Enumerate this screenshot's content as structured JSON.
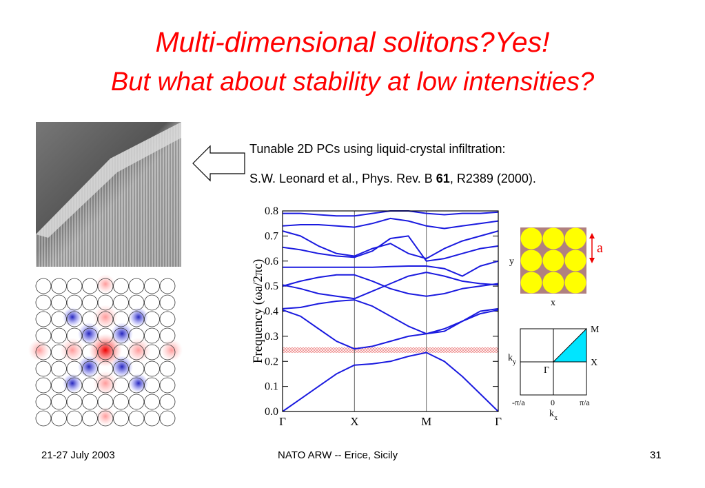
{
  "header": {
    "title": "Multi-dimensional solitons?Yes!",
    "subtitle": "But what about stability at low intensities?"
  },
  "reference": {
    "line1": "Tunable 2D PCs using liquid-crystal infiltration:",
    "line2_before": "S.W. Leonard et al., Phys. Rev. B ",
    "line2_bold": "61",
    "line2_after": ", R2389 (2000)."
  },
  "chart_data": {
    "type": "line",
    "y_label": "Frequency  (ωa/2πc)",
    "categories": [
      "Γ",
      null,
      null,
      null,
      "X",
      null,
      null,
      null,
      "M",
      null,
      null,
      null,
      "Γ"
    ],
    "ylim": [
      0,
      0.8
    ],
    "yticks": [
      {
        "value": 0,
        "label": "0.0"
      },
      0.1,
      0.2,
      0.3,
      0.4,
      0.5,
      0.6,
      0.7,
      0.8
    ],
    "color": "#1a1adf",
    "highlight": 0.245,
    "series": [
      {
        "values": [
          0,
          0.05,
          0.1,
          0.15,
          0.185,
          0.19,
          0.2,
          0.22,
          0.235,
          0.2,
          0.14,
          0.07,
          0
        ]
      },
      {
        "values": [
          0.405,
          0.38,
          0.33,
          0.28,
          0.25,
          0.26,
          0.28,
          0.3,
          0.31,
          0.33,
          0.36,
          0.39,
          0.405
        ]
      },
      {
        "values": [
          0.41,
          0.415,
          0.43,
          0.44,
          0.445,
          0.42,
          0.38,
          0.34,
          0.31,
          0.32,
          0.36,
          0.4,
          0.41
        ]
      },
      {
        "values": [
          0.5,
          0.52,
          0.535,
          0.545,
          0.545,
          0.52,
          0.49,
          0.47,
          0.46,
          0.47,
          0.49,
          0.5,
          0.51
        ]
      },
      {
        "values": [
          0.505,
          0.49,
          0.47,
          0.46,
          0.45,
          0.48,
          0.51,
          0.54,
          0.555,
          0.54,
          0.52,
          0.51,
          0.505
        ]
      },
      {
        "values": [
          0.575,
          0.575,
          0.575,
          0.575,
          0.575,
          0.575,
          0.578,
          0.58,
          0.58,
          0.57,
          0.54,
          0.58,
          0.6
        ]
      },
      {
        "values": [
          0.655,
          0.645,
          0.63,
          0.62,
          0.615,
          0.64,
          0.69,
          0.7,
          0.6,
          0.61,
          0.63,
          0.65,
          0.66
        ]
      },
      {
        "values": [
          0.72,
          0.7,
          0.66,
          0.63,
          0.62,
          0.65,
          0.67,
          0.63,
          0.61,
          0.65,
          0.68,
          0.7,
          0.72
        ]
      },
      {
        "values": [
          0.74,
          0.745,
          0.745,
          0.74,
          0.735,
          0.75,
          0.77,
          0.76,
          0.74,
          0.73,
          0.74,
          0.75,
          0.76
        ]
      },
      {
        "values": [
          0.79,
          0.79,
          0.785,
          0.78,
          0.78,
          0.79,
          0.8,
          0.8,
          0.79,
          0.785,
          0.79,
          0.79,
          0.795
        ]
      }
    ]
  },
  "lattice": {
    "a": "a",
    "y": "y",
    "x": "x"
  },
  "brillouin": {
    "M": "M",
    "X": "X",
    "Gamma": "Γ",
    "ky_base": "k",
    "ky_sub": "y",
    "kx_base": "k",
    "kx_sub": "x",
    "kx_min": "-π/a",
    "kx_zero": "0",
    "kx_max": "π/a"
  },
  "footer": {
    "left": "21-27 July 2003",
    "center": "NATO ARW --  Erice, Sicily",
    "right": "31"
  }
}
